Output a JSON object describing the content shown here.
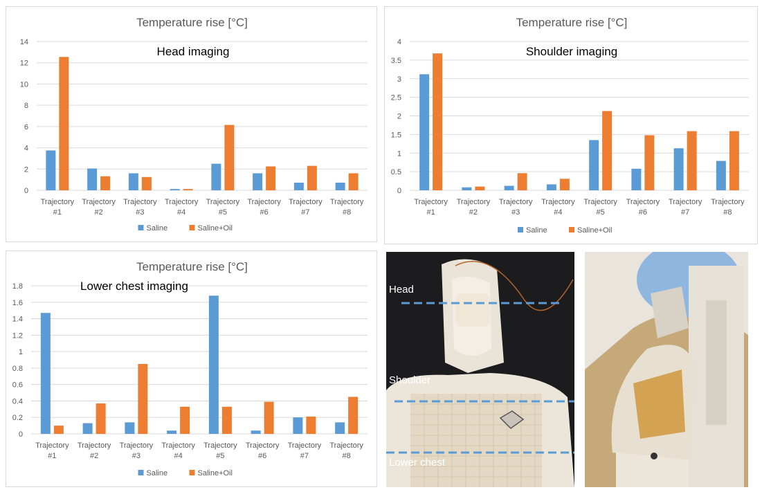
{
  "colors": {
    "saline": "#5B9BD5",
    "saline_oil": "#ED7D31",
    "grid": "#d9d9d9",
    "text": "#595959"
  },
  "chart_data": [
    {
      "type": "bar",
      "title": "Temperature rise [°C]",
      "annotation": "Head imaging",
      "categories": [
        [
          "Trajectory",
          "#1"
        ],
        [
          "Trajectory",
          "#2"
        ],
        [
          "Trajectory",
          "#3"
        ],
        [
          "Trajectory",
          "#4"
        ],
        [
          "Trajectory",
          "#5"
        ],
        [
          "Trajectory",
          "#6"
        ],
        [
          "Trajectory",
          "#7"
        ],
        [
          "Trajectory",
          "#8"
        ]
      ],
      "series": [
        {
          "name": "Saline",
          "values": [
            3.75,
            2.05,
            1.6,
            0.12,
            2.5,
            1.6,
            0.72,
            0.72
          ]
        },
        {
          "name": "Saline+Oil",
          "values": [
            12.55,
            1.32,
            1.25,
            0.12,
            6.15,
            2.25,
            2.3,
            1.6
          ]
        }
      ],
      "yticks": [
        "0",
        "2",
        "4",
        "6",
        "8",
        "10",
        "12",
        "14"
      ],
      "ylim": [
        0,
        14
      ],
      "legend": "bottom",
      "grid": true
    },
    {
      "type": "bar",
      "title": "Temperature rise [°C]",
      "annotation": "Shoulder imaging",
      "categories": [
        [
          "Trajectory",
          "#1"
        ],
        [
          "Trajectory",
          "#2"
        ],
        [
          "Trajectory",
          "#3"
        ],
        [
          "Trajectory",
          "#4"
        ],
        [
          "Trajectory",
          "#5"
        ],
        [
          "Trajectory",
          "#6"
        ],
        [
          "Trajectory",
          "#7"
        ],
        [
          "Trajectory",
          "#8"
        ]
      ],
      "series": [
        {
          "name": "Saline",
          "values": [
            3.12,
            0.08,
            0.12,
            0.16,
            1.35,
            0.58,
            1.13,
            0.79
          ]
        },
        {
          "name": "Saline+Oil",
          "values": [
            3.68,
            0.1,
            0.46,
            0.31,
            2.13,
            1.48,
            1.59,
            1.59
          ]
        }
      ],
      "yticks": [
        "0",
        "0.5",
        "1",
        "1.5",
        "2",
        "2.5",
        "3",
        "3.5",
        "4"
      ],
      "ylim": [
        0,
        4
      ],
      "legend": "bottom",
      "grid": true
    },
    {
      "type": "bar",
      "title": "Temperature rise [°C]",
      "annotation": "Lower chest imaging",
      "categories": [
        [
          "Trajectory",
          "#1"
        ],
        [
          "Trajectory",
          "#2"
        ],
        [
          "Trajectory",
          "#3"
        ],
        [
          "Trajectory",
          "#4"
        ],
        [
          "Trajectory",
          "#5"
        ],
        [
          "Trajectory",
          "#6"
        ],
        [
          "Trajectory",
          "#7"
        ],
        [
          "Trajectory",
          "#8"
        ]
      ],
      "series": [
        {
          "name": "Saline",
          "values": [
            1.47,
            0.13,
            0.14,
            0.04,
            1.68,
            0.04,
            0.2,
            0.14
          ]
        },
        {
          "name": "Saline+Oil",
          "values": [
            0.1,
            0.37,
            0.85,
            0.33,
            0.33,
            0.39,
            0.21,
            0.45
          ]
        }
      ],
      "yticks": [
        "0",
        "0.2",
        "0.4",
        "0.6",
        "0.8",
        "1",
        "1.2",
        "1.4",
        "1.6",
        "1.8"
      ],
      "ylim": [
        0,
        1.8
      ],
      "legend": "bottom",
      "grid": true
    }
  ],
  "photo": {
    "labels": {
      "head": "Head",
      "shoulder": "Shoulder",
      "lower_chest": "Lower chest"
    }
  }
}
